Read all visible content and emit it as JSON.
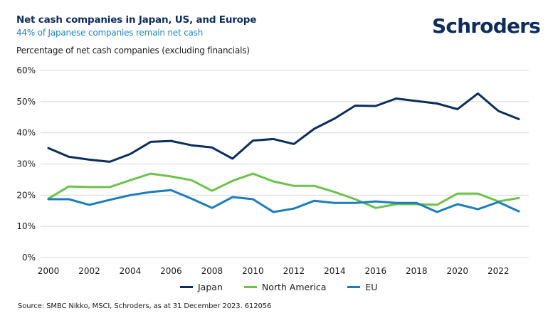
{
  "header": {
    "title": "Net cash companies in Japan, US, and Europe",
    "subtitle": "44% of Japanese companies remain net cash",
    "axis_caption": "Percentage of net cash companies (excluding financials)",
    "logo": "Schroders"
  },
  "footer": {
    "source": "Source: SMBC Nikko, MSCI, Schroders, as at 31 December 2023. 612056"
  },
  "colors": {
    "japan": "#0b2d5e",
    "north_america": "#6cc24a",
    "eu": "#1c7dba",
    "grid": "#d9d9d9"
  },
  "chart_data": {
    "type": "line",
    "title": "Net cash companies in Japan, US, and Europe",
    "subtitle": "44% of Japanese companies remain net cash",
    "xlabel": "",
    "ylabel": "Percentage of net cash companies (excluding financials)",
    "x": [
      2000,
      2001,
      2002,
      2003,
      2004,
      2005,
      2006,
      2007,
      2008,
      2009,
      2010,
      2011,
      2012,
      2013,
      2014,
      2015,
      2016,
      2017,
      2018,
      2019,
      2020,
      2021,
      2022,
      2023
    ],
    "xticks": [
      "2000",
      "2002",
      "2004",
      "2006",
      "2008",
      "2010",
      "2012",
      "2014",
      "2016",
      "2018",
      "2020",
      "2022"
    ],
    "xlim": [
      2000,
      2023
    ],
    "ylim": [
      0,
      60
    ],
    "yticks": [
      0,
      10,
      20,
      30,
      40,
      50,
      60
    ],
    "ytick_labels": [
      "0%",
      "10%",
      "20%",
      "30%",
      "40%",
      "50%",
      "60%"
    ],
    "grid": true,
    "legend_position": "bottom",
    "series": [
      {
        "name": "Japan",
        "color_key": "japan",
        "values": [
          35.1,
          32.3,
          31.4,
          30.7,
          33.2,
          37.1,
          37.4,
          36.0,
          35.3,
          31.7,
          37.5,
          38.0,
          36.4,
          41.3,
          44.6,
          48.7,
          48.6,
          51.0,
          50.2,
          49.4,
          47.6,
          52.6,
          47.0,
          44.4
        ]
      },
      {
        "name": "North America",
        "color_key": "north_america",
        "values": [
          18.9,
          22.8,
          22.6,
          22.6,
          24.8,
          26.9,
          26.0,
          24.8,
          21.4,
          24.6,
          26.9,
          24.4,
          23.0,
          23.0,
          21.0,
          18.7,
          15.9,
          17.1,
          17.1,
          16.9,
          20.5,
          20.5,
          18.0,
          19.1
        ]
      },
      {
        "name": "EU",
        "color_key": "eu",
        "values": [
          18.7,
          18.7,
          16.9,
          18.5,
          20.0,
          21.0,
          21.6,
          18.9,
          15.9,
          19.4,
          18.7,
          14.6,
          15.7,
          18.2,
          17.5,
          17.5,
          18.0,
          17.5,
          17.5,
          14.6,
          17.1,
          15.5,
          17.8,
          14.8
        ]
      }
    ]
  }
}
